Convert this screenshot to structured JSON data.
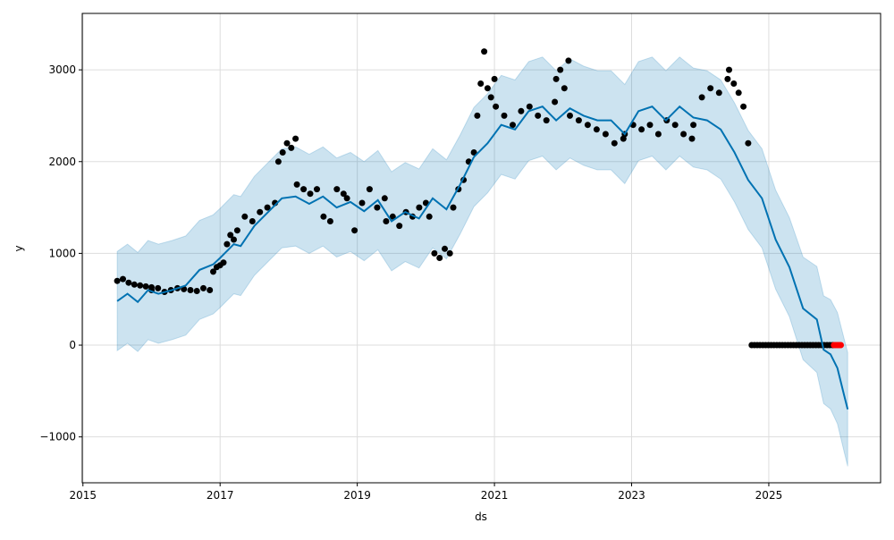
{
  "chart_data": {
    "type": "line",
    "title": "",
    "xlabel": "ds",
    "ylabel": "y",
    "xlim": [
      2014.99,
      2026.63
    ],
    "ylim": [
      -1500,
      3615
    ],
    "grid": true,
    "x_ticks": [
      2015,
      2017,
      2019,
      2021,
      2023,
      2025
    ],
    "x_tick_labels": [
      "2015",
      "2017",
      "2019",
      "2021",
      "2023",
      "2025"
    ],
    "y_ticks": [
      -1000,
      0,
      1000,
      2000,
      3000
    ],
    "y_tick_labels": [
      "−1000",
      "0",
      "1000",
      "2000",
      "3000"
    ],
    "colors": {
      "forecast": "#0072B2",
      "interval": "#0072B2",
      "actual": "#000000",
      "test": "#FF0000"
    },
    "interval_halfwidth": 540,
    "interval_halfwidth_end": 620,
    "forecast": [
      [
        2015.5,
        480
      ],
      [
        2015.65,
        560
      ],
      [
        2015.8,
        470
      ],
      [
        2015.95,
        600
      ],
      [
        2016.1,
        560
      ],
      [
        2016.3,
        600
      ],
      [
        2016.5,
        650
      ],
      [
        2016.7,
        820
      ],
      [
        2016.9,
        880
      ],
      [
        2017.0,
        950
      ],
      [
        2017.2,
        1100
      ],
      [
        2017.3,
        1080
      ],
      [
        2017.5,
        1300
      ],
      [
        2017.7,
        1450
      ],
      [
        2017.9,
        1600
      ],
      [
        2018.1,
        1620
      ],
      [
        2018.3,
        1540
      ],
      [
        2018.5,
        1620
      ],
      [
        2018.7,
        1500
      ],
      [
        2018.9,
        1560
      ],
      [
        2019.1,
        1460
      ],
      [
        2019.3,
        1580
      ],
      [
        2019.5,
        1350
      ],
      [
        2019.7,
        1450
      ],
      [
        2019.9,
        1380
      ],
      [
        2020.1,
        1600
      ],
      [
        2020.3,
        1480
      ],
      [
        2020.5,
        1750
      ],
      [
        2020.7,
        2050
      ],
      [
        2020.9,
        2200
      ],
      [
        2021.1,
        2400
      ],
      [
        2021.3,
        2350
      ],
      [
        2021.5,
        2550
      ],
      [
        2021.7,
        2600
      ],
      [
        2021.9,
        2450
      ],
      [
        2022.1,
        2580
      ],
      [
        2022.3,
        2500
      ],
      [
        2022.5,
        2450
      ],
      [
        2022.7,
        2450
      ],
      [
        2022.9,
        2300
      ],
      [
        2023.1,
        2550
      ],
      [
        2023.3,
        2600
      ],
      [
        2023.5,
        2450
      ],
      [
        2023.7,
        2600
      ],
      [
        2023.9,
        2480
      ],
      [
        2024.1,
        2450
      ],
      [
        2024.3,
        2350
      ],
      [
        2024.5,
        2100
      ],
      [
        2024.7,
        1800
      ],
      [
        2024.9,
        1600
      ],
      [
        2025.1,
        1150
      ],
      [
        2025.3,
        850
      ],
      [
        2025.5,
        400
      ],
      [
        2025.7,
        280
      ],
      [
        2025.8,
        -50
      ],
      [
        2025.9,
        -100
      ],
      [
        2026.0,
        -250
      ],
      [
        2026.1,
        -550
      ],
      [
        2026.15,
        -700
      ]
    ],
    "actual_segments": [
      {
        "from": 2015.5,
        "to": 2016.0,
        "values": [
          700,
          720,
          680,
          660,
          650,
          640,
          630
        ]
      },
      {
        "from": 2016.0,
        "to": 2016.85,
        "values": [
          600,
          620,
          580,
          600,
          620,
          610,
          600,
          590,
          620,
          600
        ]
      },
      {
        "from": 2016.9,
        "to": 2017.2,
        "values": [
          800,
          850,
          870,
          900,
          1100,
          1200,
          1150
        ]
      },
      {
        "from": 2017.25,
        "to": 2017.8,
        "values": [
          1250,
          1400,
          1350,
          1450,
          1500,
          1550
        ]
      },
      {
        "from": 2017.85,
        "to": 2018.1,
        "values": [
          2000,
          2100,
          2200,
          2150,
          2250
        ]
      },
      {
        "from": 2018.12,
        "to": 2018.8,
        "values": [
          1750,
          1700,
          1650,
          1700,
          1400,
          1350,
          1700,
          1650
        ]
      },
      {
        "from": 2018.85,
        "to": 2019.4,
        "values": [
          1600,
          1250,
          1550,
          1700,
          1500,
          1600
        ]
      },
      {
        "from": 2019.42,
        "to": 2020.0,
        "values": [
          1350,
          1400,
          1300,
          1450,
          1400,
          1500,
          1550
        ]
      },
      {
        "from": 2020.05,
        "to": 2020.35,
        "values": [
          1400,
          1000,
          950,
          1050,
          1000
        ]
      },
      {
        "from": 2020.4,
        "to": 2020.7,
        "values": [
          1500,
          1700,
          1800,
          2000,
          2100
        ]
      },
      {
        "from": 2020.75,
        "to": 2021.0,
        "values": [
          2500,
          2850,
          3200,
          2800,
          2700,
          2900
        ]
      },
      {
        "from": 2021.02,
        "to": 2021.88,
        "values": [
          2600,
          2500,
          2400,
          2550,
          2600,
          2500,
          2450,
          2650
        ]
      },
      {
        "from": 2021.9,
        "to": 2022.08,
        "values": [
          2900,
          3000,
          2800,
          3100
        ]
      },
      {
        "from": 2022.1,
        "to": 2022.88,
        "values": [
          2500,
          2450,
          2400,
          2350,
          2300,
          2200,
          2250
        ]
      },
      {
        "from": 2022.9,
        "to": 2023.88,
        "values": [
          2300,
          2400,
          2350,
          2400,
          2300,
          2450,
          2400,
          2300,
          2250
        ]
      },
      {
        "from": 2023.9,
        "to": 2024.4,
        "values": [
          2400,
          2700,
          2800,
          2750,
          2900
        ]
      },
      {
        "from": 2024.42,
        "to": 2024.7,
        "values": [
          3000,
          2850,
          2750,
          2600,
          2200
        ]
      },
      {
        "from": 2024.75,
        "to": 2025.93,
        "values": [
          0,
          0,
          0,
          0,
          0,
          0,
          0,
          0,
          0,
          0,
          0,
          0,
          0,
          0,
          0,
          0,
          0,
          0,
          0,
          0,
          0,
          0,
          0,
          0,
          0,
          0,
          0,
          0,
          0,
          0
        ]
      }
    ],
    "test_segments": [
      {
        "from": 2025.95,
        "to": 2026.05,
        "values": [
          0,
          0,
          0,
          0,
          0
        ]
      }
    ]
  }
}
